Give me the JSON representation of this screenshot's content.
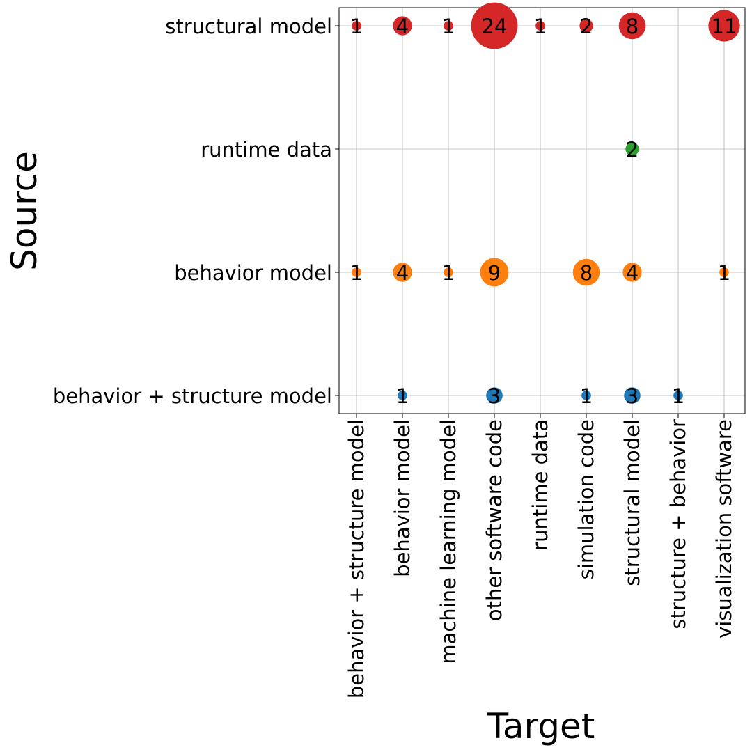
{
  "chart_data": {
    "type": "scatter",
    "title": "",
    "xlabel": "Target",
    "ylabel": "Source",
    "grid": true,
    "x_categories": [
      "behavior + structure model",
      "behavior model",
      "machine learning model",
      "other software code",
      "runtime data",
      "simulation code",
      "structural model",
      "structure + behavior",
      "visualization software"
    ],
    "y_categories": [
      "behavior + structure model",
      "behavior model",
      "runtime data",
      "structural model"
    ],
    "points": [
      {
        "x": "behavior + structure model",
        "y": "structural model",
        "value": 1,
        "color": "#d62728"
      },
      {
        "x": "behavior model",
        "y": "structural model",
        "value": 4,
        "color": "#d62728"
      },
      {
        "x": "machine learning model",
        "y": "structural model",
        "value": 1,
        "color": "#d62728"
      },
      {
        "x": "other software code",
        "y": "structural model",
        "value": 24,
        "color": "#d62728"
      },
      {
        "x": "runtime data",
        "y": "structural model",
        "value": 1,
        "color": "#d62728"
      },
      {
        "x": "simulation code",
        "y": "structural model",
        "value": 2,
        "color": "#d62728"
      },
      {
        "x": "structural model",
        "y": "structural model",
        "value": 8,
        "color": "#d62728"
      },
      {
        "x": "visualization software",
        "y": "structural model",
        "value": 11,
        "color": "#d62728"
      },
      {
        "x": "structural model",
        "y": "runtime data",
        "value": 2,
        "color": "#2ca02c"
      },
      {
        "x": "behavior + structure model",
        "y": "behavior model",
        "value": 1,
        "color": "#ff7f0e"
      },
      {
        "x": "behavior model",
        "y": "behavior model",
        "value": 4,
        "color": "#ff7f0e"
      },
      {
        "x": "machine learning model",
        "y": "behavior model",
        "value": 1,
        "color": "#ff7f0e"
      },
      {
        "x": "other software code",
        "y": "behavior model",
        "value": 9,
        "color": "#ff7f0e"
      },
      {
        "x": "simulation code",
        "y": "behavior model",
        "value": 8,
        "color": "#ff7f0e"
      },
      {
        "x": "structural model",
        "y": "behavior model",
        "value": 4,
        "color": "#ff7f0e"
      },
      {
        "x": "visualization software",
        "y": "behavior model",
        "value": 1,
        "color": "#ff7f0e"
      },
      {
        "x": "behavior model",
        "y": "behavior + structure model",
        "value": 1,
        "color": "#1f77b4"
      },
      {
        "x": "other software code",
        "y": "behavior + structure model",
        "value": 3,
        "color": "#1f77b4"
      },
      {
        "x": "simulation code",
        "y": "behavior + structure model",
        "value": 1,
        "color": "#1f77b4"
      },
      {
        "x": "structural model",
        "y": "behavior + structure model",
        "value": 3,
        "color": "#1f77b4"
      },
      {
        "x": "structure + behavior",
        "y": "behavior + structure model",
        "value": 1,
        "color": "#1f77b4"
      }
    ]
  }
}
